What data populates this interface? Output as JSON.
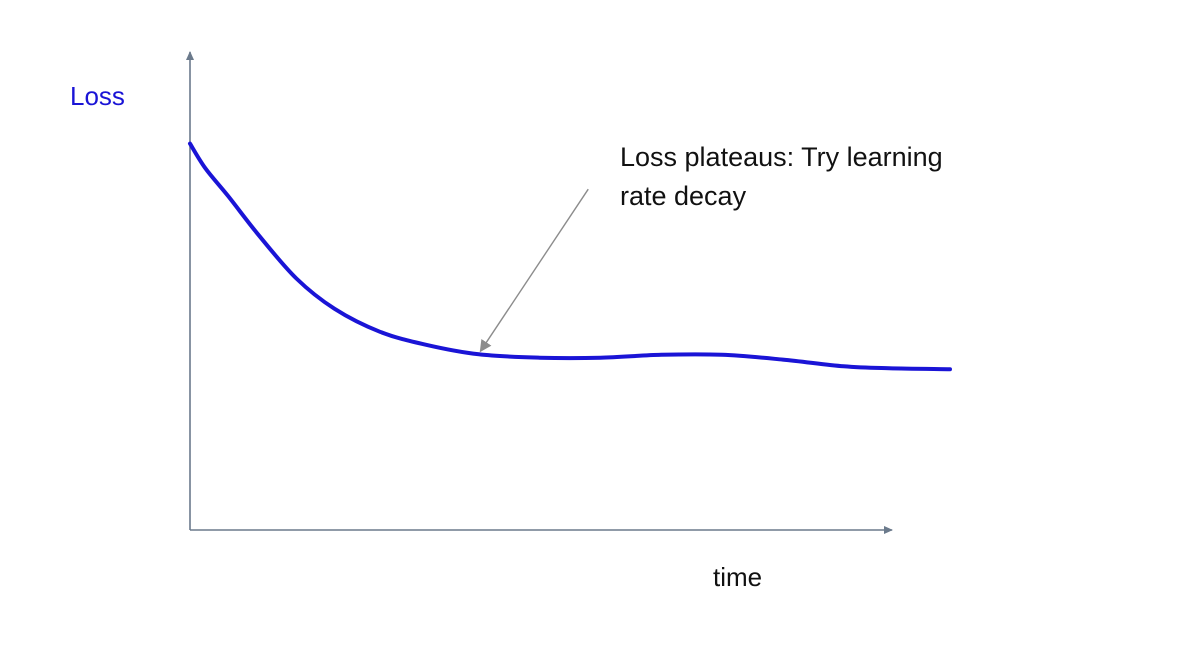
{
  "chart_data": {
    "type": "line",
    "title": "",
    "ylabel": "Loss",
    "xlabel": "time",
    "grid": false,
    "legend": "none",
    "colors": {
      "series": "#1a14d6",
      "ylabel": "#1a14d6",
      "axis": "#6b7a8c",
      "arrow": "#8c8c8c"
    },
    "xlim": [
      0,
      100
    ],
    "ylim": [
      0,
      100
    ],
    "series": [
      {
        "x": [
          0,
          2,
          5,
          9,
          14,
          19,
          25,
          31,
          38,
          46,
          54,
          62,
          70,
          78,
          86,
          92,
          100
        ],
        "values": [
          80.5,
          75.4,
          69.6,
          61.5,
          52.4,
          46.1,
          41.3,
          38.6,
          36.6,
          35.9,
          35.9,
          36.5,
          36.5,
          35.5,
          34.1,
          33.7,
          33.5
        ]
      }
    ],
    "annotations": [
      {
        "lines": [
          "Loss plateaus: Try learning",
          "rate decay"
        ],
        "points_to": {
          "x": 38.2,
          "y": 37.2
        },
        "text_at": {
          "x": 52.4,
          "y": 71.0
        }
      }
    ]
  }
}
